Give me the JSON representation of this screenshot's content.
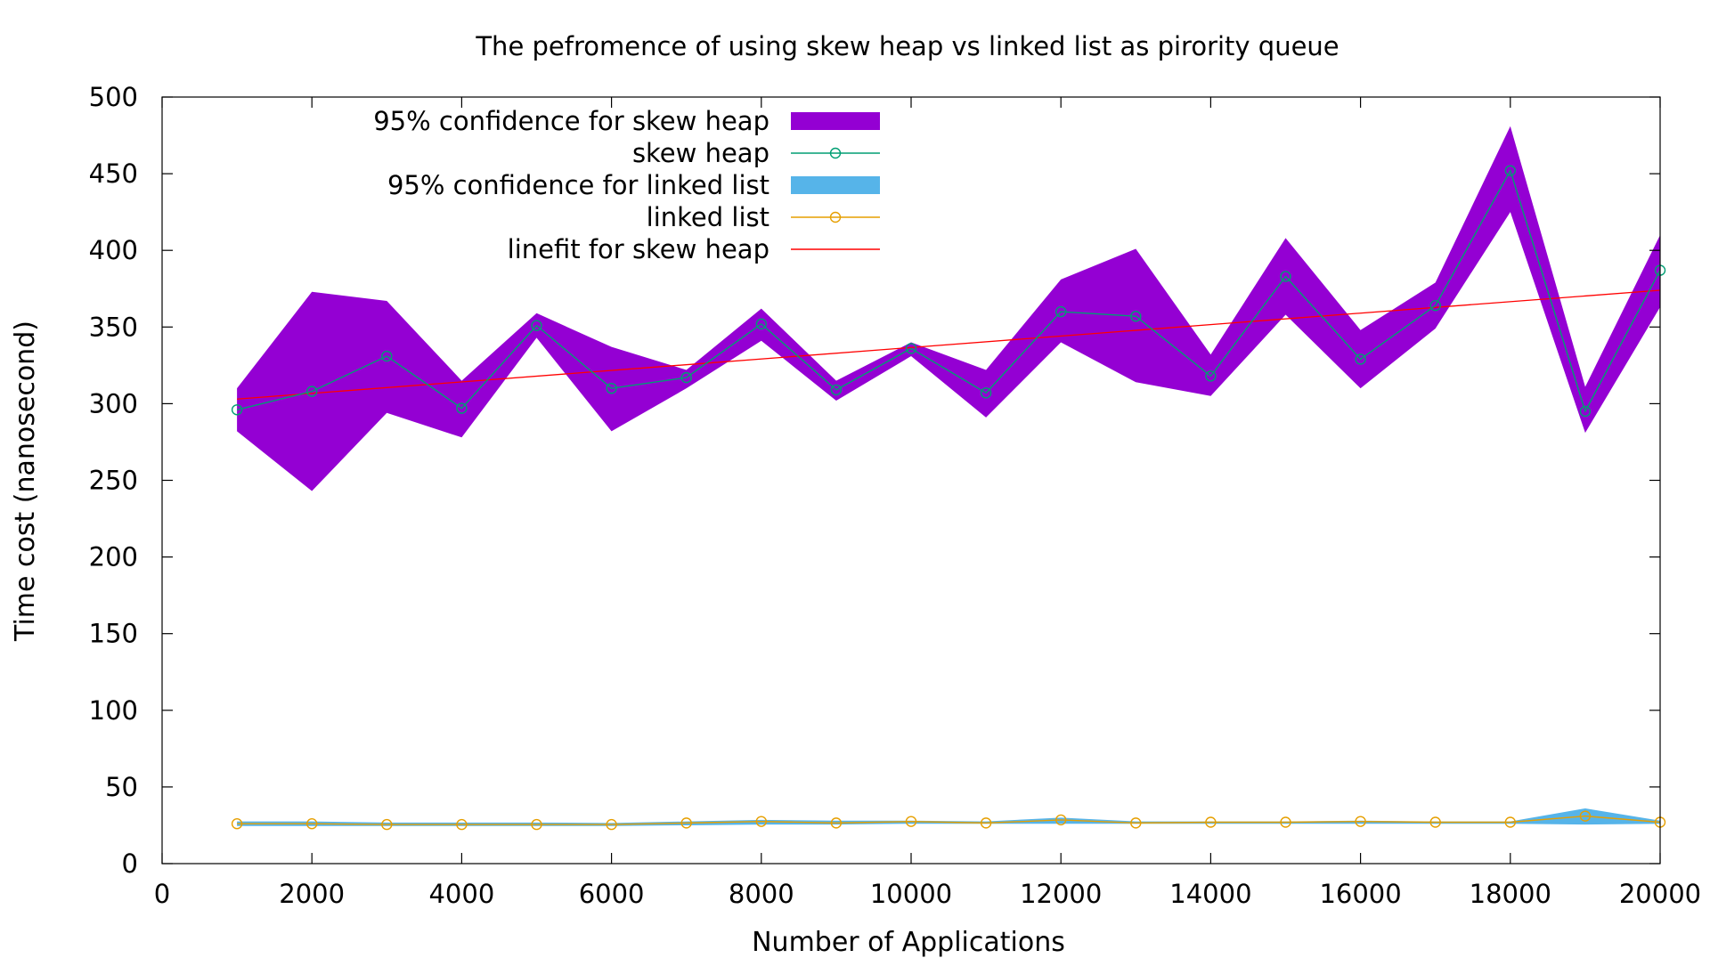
{
  "chart_data": {
    "type": "line",
    "title": "The pefromence of using skew heap vs linked list as pirority queue",
    "xlabel": "Number of Applications",
    "ylabel": "Time cost (nanosecond)",
    "xlim": [
      0,
      20000
    ],
    "ylim": [
      0,
      500
    ],
    "x_ticks": [
      0,
      2000,
      4000,
      6000,
      8000,
      10000,
      12000,
      14000,
      16000,
      18000,
      20000
    ],
    "y_ticks": [
      0,
      50,
      100,
      150,
      200,
      250,
      300,
      350,
      400,
      450,
      500
    ],
    "grid": false,
    "legend_position": "top-left",
    "x": [
      1000,
      2000,
      3000,
      4000,
      5000,
      6000,
      7000,
      8000,
      9000,
      10000,
      11000,
      12000,
      13000,
      14000,
      15000,
      16000,
      17000,
      18000,
      19000,
      20000
    ],
    "bands": [
      {
        "name": "95% confidence for skew heap",
        "color": "#9400d3",
        "upper": [
          310,
          373,
          367,
          315,
          359,
          337,
          322,
          362,
          315,
          340,
          322,
          381,
          401,
          332,
          408,
          348,
          379,
          481,
          311,
          410
        ],
        "lower": [
          282,
          243,
          294,
          278,
          343,
          282,
          310,
          341,
          302,
          331,
          291,
          340,
          314,
          305,
          358,
          310,
          349,
          425,
          281,
          363
        ]
      },
      {
        "name": "95% confidence for linked list",
        "color": "#56b4e9",
        "upper": [
          27.5,
          27.5,
          26.8,
          26.8,
          26.8,
          26.5,
          27.5,
          28.5,
          28,
          28,
          27.5,
          30,
          27.5,
          27.5,
          27.5,
          28,
          27.5,
          27.5,
          36,
          28
        ],
        "lower": [
          24.5,
          24.5,
          24.5,
          24.5,
          24.5,
          24.5,
          25,
          25.5,
          25.5,
          26,
          26,
          26,
          26,
          26,
          26,
          26,
          26,
          26,
          25.5,
          26
        ]
      }
    ],
    "series": [
      {
        "name": "skew heap",
        "color": "#009e73",
        "marker": "circle",
        "values": [
          296,
          308,
          331,
          297,
          351,
          310,
          317,
          352,
          309,
          336,
          307,
          360,
          357,
          318,
          383,
          329,
          364,
          452,
          295,
          387
        ]
      },
      {
        "name": "linked list",
        "color": "#e69f00",
        "marker": "circle",
        "values": [
          26,
          26,
          25.5,
          25.5,
          25.5,
          25.5,
          26.5,
          27.5,
          26.5,
          27.5,
          26.5,
          28.5,
          26.5,
          27,
          27,
          27.5,
          27,
          27,
          31,
          27
        ]
      }
    ],
    "fit": {
      "name": "linefit for skew heap",
      "color": "#ff0000",
      "start": [
        1000,
        303
      ],
      "end": [
        20000,
        374
      ]
    }
  }
}
